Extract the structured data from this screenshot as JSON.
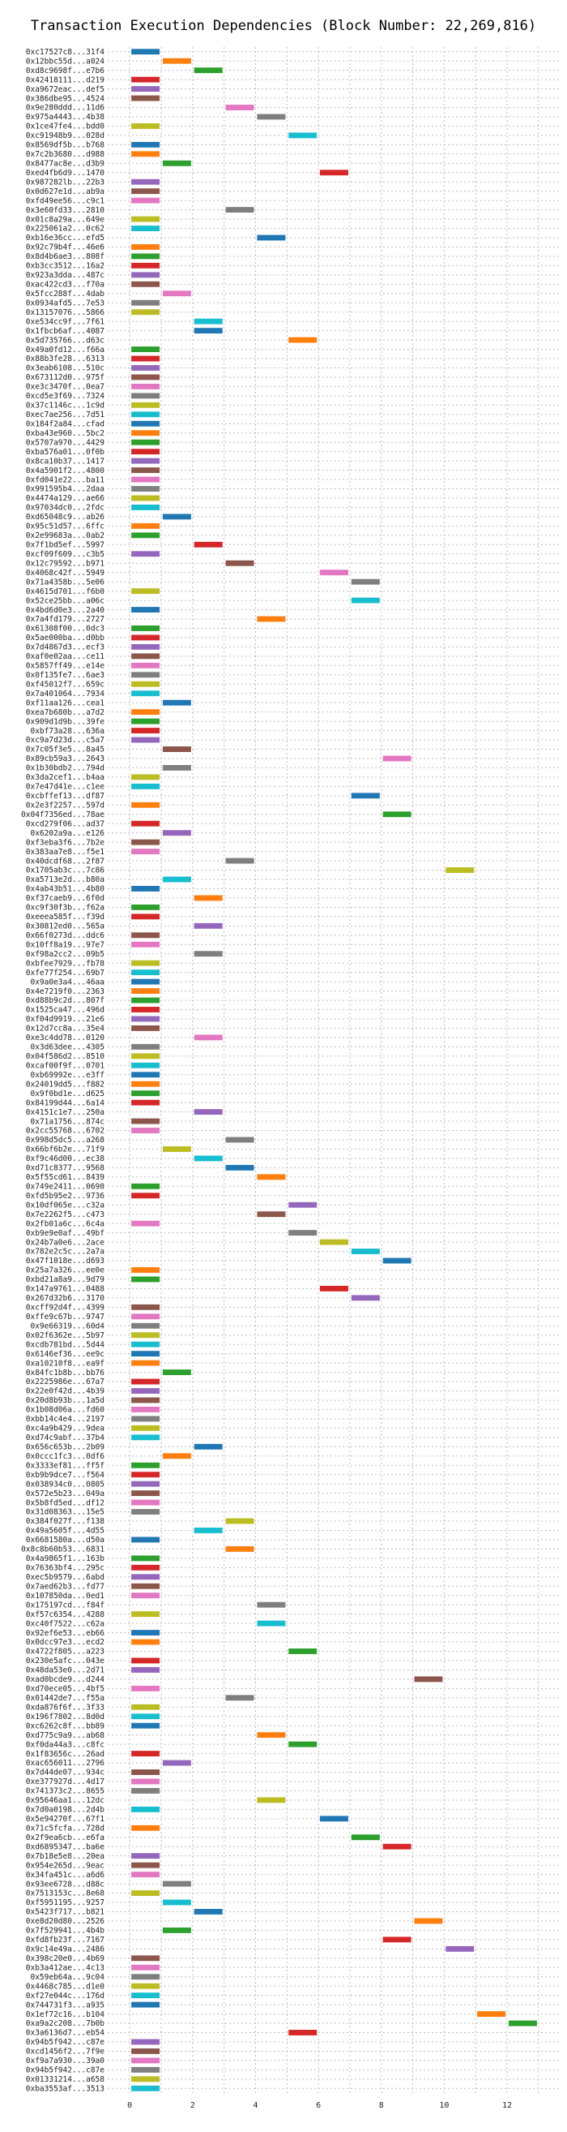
{
  "chart_data": {
    "type": "bar",
    "orientation": "horizontal",
    "title": "Transaction Execution Dependencies (Block Number: 22,269,816)",
    "xlabel": "",
    "ylabel": "",
    "xlim": [
      -0.7,
      13.7
    ],
    "xticks": [
      0,
      2,
      4,
      6,
      8,
      10,
      12
    ],
    "grid": true,
    "color_cycle": [
      "#1f77b4",
      "#ff7f0e",
      "#2ca02c",
      "#d62728",
      "#9467bd",
      "#8c564b",
      "#e377c2",
      "#7f7f7f",
      "#bcbd22",
      "#17becf"
    ],
    "transactions": [
      {
        "label": "0xc17527c8...31f4",
        "x": 0
      },
      {
        "label": "0x12bbc55d...a024",
        "x": 1
      },
      {
        "label": "0xd8c9698f...e7b6",
        "x": 2
      },
      {
        "label": "0x42418111...d219",
        "x": 0
      },
      {
        "label": "0xa9672eac...def5",
        "x": 0
      },
      {
        "label": "0x386dbe95...4524",
        "x": 0
      },
      {
        "label": "0x9e280ddd...11d6",
        "x": 3
      },
      {
        "label": "0x975a4443...4b38",
        "x": 4
      },
      {
        "label": "0x1ce47fe4...bdd0",
        "x": 0
      },
      {
        "label": "0xc91948b9...028d",
        "x": 5
      },
      {
        "label": "0x8569df5b...b768",
        "x": 0
      },
      {
        "label": "0x7c2b3680...d988",
        "x": 0
      },
      {
        "label": "0x8477ac8e...d3b9",
        "x": 1
      },
      {
        "label": "0xed4fb6d9...1470",
        "x": 6
      },
      {
        "label": "0x987282lb...22b3",
        "x": 0
      },
      {
        "label": "0x0d627e1d...ab9a",
        "x": 0
      },
      {
        "label": "0xfd49ee56...c9c1",
        "x": 0
      },
      {
        "label": "0x3e60fd33...2810",
        "x": 3
      },
      {
        "label": "0x01c8a29a...649e",
        "x": 0
      },
      {
        "label": "0x225061a2...0c62",
        "x": 0
      },
      {
        "label": "0xb16e36cc...efd5",
        "x": 4
      },
      {
        "label": "0x92c79b4f...46e6",
        "x": 0
      },
      {
        "label": "0x8d4b6ae3...808f",
        "x": 0
      },
      {
        "label": "0xb3cc3512...16a2",
        "x": 0
      },
      {
        "label": "0x923a3dda...487c",
        "x": 0
      },
      {
        "label": "0xac422cd3...f70a",
        "x": 0
      },
      {
        "label": "0x5fcc288f...4dab",
        "x": 1
      },
      {
        "label": "0x0934afd5...7e53",
        "x": 0
      },
      {
        "label": "0x13157076...5866",
        "x": 0
      },
      {
        "label": "0xe534cc9f...7f61",
        "x": 2
      },
      {
        "label": "0x1fbcb6af...4087",
        "x": 2
      },
      {
        "label": "0x5d735766...d63c",
        "x": 5
      },
      {
        "label": "0x49a0fd12...f66a",
        "x": 0
      },
      {
        "label": "0x88b3fe28...6313",
        "x": 0
      },
      {
        "label": "0x3eab6108...510c",
        "x": 0
      },
      {
        "label": "0x673112d0...975f",
        "x": 0
      },
      {
        "label": "0xe3c3470f...0ea7",
        "x": 0
      },
      {
        "label": "0xcd5e3f69...7324",
        "x": 0
      },
      {
        "label": "0x37c1146c...1c9d",
        "x": 0
      },
      {
        "label": "0xec7ae256...7d51",
        "x": 0
      },
      {
        "label": "0x184f2a84...cfad",
        "x": 0
      },
      {
        "label": "0xba43e960...5bc2",
        "x": 0
      },
      {
        "label": "0x5707a970...4429",
        "x": 0
      },
      {
        "label": "0xba576a01...0f0b",
        "x": 0
      },
      {
        "label": "0x8ca10b37...1417",
        "x": 0
      },
      {
        "label": "0x4a5901f2...4800",
        "x": 0
      },
      {
        "label": "0xfd041e22...ba11",
        "x": 0
      },
      {
        "label": "0x991595b4...2daa",
        "x": 0
      },
      {
        "label": "0x4474a129...ae66",
        "x": 0
      },
      {
        "label": "0x97034dc0...2fdc",
        "x": 0
      },
      {
        "label": "0xd65048c9...ab26",
        "x": 1
      },
      {
        "label": "0x95c51d57...6ffc",
        "x": 0
      },
      {
        "label": "0x2e99683a...0ab2",
        "x": 0
      },
      {
        "label": "0x7f1bd5ef...5997",
        "x": 2
      },
      {
        "label": "0xcf09f609...c3b5",
        "x": 0
      },
      {
        "label": "0x12c79592...b971",
        "x": 3
      },
      {
        "label": "0x4068c42f...5949",
        "x": 6
      },
      {
        "label": "0x71a4358b...5e06",
        "x": 7
      },
      {
        "label": "0x4615d701...f6b0",
        "x": 0
      },
      {
        "label": "0x52ce25bb...a06c",
        "x": 7
      },
      {
        "label": "0x4bd6d0e3...2a40",
        "x": 0
      },
      {
        "label": "0x7a4fd179...2727",
        "x": 4
      },
      {
        "label": "0x61308f00...0dc3",
        "x": 0
      },
      {
        "label": "0x5ae000ba...d0bb",
        "x": 0
      },
      {
        "label": "0x7d4867d3...ecf3",
        "x": 0
      },
      {
        "label": "0xaf0e02aa...ce11",
        "x": 0
      },
      {
        "label": "0x5857ff49...e14e",
        "x": 0
      },
      {
        "label": "0x0f135fe7...6ae3",
        "x": 0
      },
      {
        "label": "0xf45012f7...659c",
        "x": 0
      },
      {
        "label": "0x7a401064...7934",
        "x": 0
      },
      {
        "label": "0xf11aa126...cea1",
        "x": 1
      },
      {
        "label": "0xea7b680b...a7d2",
        "x": 0
      },
      {
        "label": "0x909d1d9b...39fe",
        "x": 0
      },
      {
        "label": "0xbf73a28...636a",
        "x": 0
      },
      {
        "label": "0xc9a7d23d...c5a7",
        "x": 0
      },
      {
        "label": "0x7c05f3e5...8a45",
        "x": 1
      },
      {
        "label": "0x89cb59a3...2643",
        "x": 8
      },
      {
        "label": "0x1b30bdb2...794d",
        "x": 1
      },
      {
        "label": "0x3da2cef1...b4aa",
        "x": 0
      },
      {
        "label": "0x7e47d41e...c1ee",
        "x": 0
      },
      {
        "label": "0xcbffef13...df87",
        "x": 7
      },
      {
        "label": "0x2e3f2257...597d",
        "x": 0
      },
      {
        "label": "0x04f7356ed...78ae",
        "x": 8
      },
      {
        "label": "0xcd279f06...ad37",
        "x": 0
      },
      {
        "label": "0x6202a9a...e126",
        "x": 1
      },
      {
        "label": "0xf3eba3f6...7b2e",
        "x": 0
      },
      {
        "label": "0x383aa7e8...f5e1",
        "x": 0
      },
      {
        "label": "0x40dcdf68...2f87",
        "x": 3
      },
      {
        "label": "0x1705ab3c...7c86",
        "x": 10
      },
      {
        "label": "0xa5713e2d...b80a",
        "x": 1
      },
      {
        "label": "0x4ab43b51...4b80",
        "x": 0
      },
      {
        "label": "0xf37caeb9...6f0d",
        "x": 2
      },
      {
        "label": "0xc9f30f3b...f62a",
        "x": 0
      },
      {
        "label": "0xeeea585f...f39d",
        "x": 0
      },
      {
        "label": "0x30812ed0...565a",
        "x": 2
      },
      {
        "label": "0x66f0273d...ddc6",
        "x": 0
      },
      {
        "label": "0x10ff8a19...97e7",
        "x": 0
      },
      {
        "label": "0xf98a2cc2...09b5",
        "x": 2
      },
      {
        "label": "0xbfee7929...fb78",
        "x": 0
      },
      {
        "label": "0xfe77f254...69b7",
        "x": 0
      },
      {
        "label": "0x9a0e3a4...46aa",
        "x": 0
      },
      {
        "label": "0x4e7219f0...2363",
        "x": 0
      },
      {
        "label": "0xd88b9c2d...807f",
        "x": 0
      },
      {
        "label": "0x1525ca47...496d",
        "x": 0
      },
      {
        "label": "0xf04d9919...21e6",
        "x": 0
      },
      {
        "label": "0x12d7cc8a...35e4",
        "x": 0
      },
      {
        "label": "0xe3c4dd78...0120",
        "x": 2
      },
      {
        "label": "0x3d63dee...4305",
        "x": 0
      },
      {
        "label": "0x04f586d2...8510",
        "x": 0
      },
      {
        "label": "0xcaf00f9f...0701",
        "x": 0
      },
      {
        "label": "0xb69992e...e3ff",
        "x": 0
      },
      {
        "label": "0x24019dd5...f882",
        "x": 0
      },
      {
        "label": "0x9f0bd1e...d625",
        "x": 0
      },
      {
        "label": "0x84199d44...6a14",
        "x": 0
      },
      {
        "label": "0x4151c1e7...250a",
        "x": 2
      },
      {
        "label": "0x71a1756...874c",
        "x": 0
      },
      {
        "label": "0x2cc55768...6702",
        "x": 0
      },
      {
        "label": "0x998d5dc5...a268",
        "x": 3
      },
      {
        "label": "0x66bf6b2e...71f9",
        "x": 1
      },
      {
        "label": "0xf9c46d00...ec38",
        "x": 2
      },
      {
        "label": "0xd71c8377...9568",
        "x": 3
      },
      {
        "label": "0x5f55cd61...8439",
        "x": 4
      },
      {
        "label": "0x749e2411...0690",
        "x": 0
      },
      {
        "label": "0xfd5b95e2...9736",
        "x": 0
      },
      {
        "label": "0x10df065e...c32a",
        "x": 5
      },
      {
        "label": "0x7e2262f5...c473",
        "x": 4
      },
      {
        "label": "0x2fb01a6c...6c4a",
        "x": 0
      },
      {
        "label": "0xb9e9e0af...49bf",
        "x": 5
      },
      {
        "label": "0x24b7a0e6...2ace",
        "x": 6
      },
      {
        "label": "0x782e2c5c...2a7a",
        "x": 7
      },
      {
        "label": "0x47f1018e...d693",
        "x": 8
      },
      {
        "label": "0x25a7a326...ee0e",
        "x": 0
      },
      {
        "label": "0xbd21a8a9...9d79",
        "x": 0
      },
      {
        "label": "0x147a9761...0488",
        "x": 6
      },
      {
        "label": "0x267d32b6...3170",
        "x": 7
      },
      {
        "label": "0xcff92d4f...4399",
        "x": 0
      },
      {
        "label": "0xffe9c67b...9747",
        "x": 0
      },
      {
        "label": "0x9e66319...60d4",
        "x": 0
      },
      {
        "label": "0x02f6362e...5b97",
        "x": 0
      },
      {
        "label": "0xcdb781bd...5d44",
        "x": 0
      },
      {
        "label": "0x6146ef36...ee9c",
        "x": 0
      },
      {
        "label": "0xa10210f8...ea9f",
        "x": 0
      },
      {
        "label": "0x84fc1b8b...bb76",
        "x": 1
      },
      {
        "label": "0x2225986e...67a7",
        "x": 0
      },
      {
        "label": "0x22e0f42d...4b39",
        "x": 0
      },
      {
        "label": "0x20d8b93b...1a5d",
        "x": 0
      },
      {
        "label": "0x1b08d06a...fd60",
        "x": 0
      },
      {
        "label": "0xbb14c4e4...2197",
        "x": 0
      },
      {
        "label": "0xc4a9b429...9dea",
        "x": 0
      },
      {
        "label": "0xd74c9abf...37b4",
        "x": 0
      },
      {
        "label": "0x656c653b...2b09",
        "x": 2
      },
      {
        "label": "0x0ccc1fc3...0df6",
        "x": 1
      },
      {
        "label": "0x3333ef81...ff5f",
        "x": 0
      },
      {
        "label": "0xb9b9dce7...f564",
        "x": 0
      },
      {
        "label": "0x038934c0...0805",
        "x": 0
      },
      {
        "label": "0x572e5b23...049a",
        "x": 0
      },
      {
        "label": "0x5b8fd5ed...df12",
        "x": 0
      },
      {
        "label": "0x31d08363...15e5",
        "x": 0
      },
      {
        "label": "0x384f027f...f138",
        "x": 3
      },
      {
        "label": "0x49a5605f...4d55",
        "x": 2
      },
      {
        "label": "0x6681580a...d50a",
        "x": 0
      },
      {
        "label": "0x8c8b60b53...6831",
        "x": 3
      },
      {
        "label": "0x4a9865f1...163b",
        "x": 0
      },
      {
        "label": "0x76363bf4...295c",
        "x": 0
      },
      {
        "label": "0xec5b9579...6abd",
        "x": 0
      },
      {
        "label": "0x7aed62b3...fd77",
        "x": 0
      },
      {
        "label": "0x107850da...0ed1",
        "x": 0
      },
      {
        "label": "0x175197cd...f84f",
        "x": 4
      },
      {
        "label": "0xf57c6354...4288",
        "x": 0
      },
      {
        "label": "0xc40f7522...c62a",
        "x": 4
      },
      {
        "label": "0x92ef6e53...eb66",
        "x": 0
      },
      {
        "label": "0x0dcc97e3...ecd2",
        "x": 0
      },
      {
        "label": "0x4722f805...a223",
        "x": 5
      },
      {
        "label": "0x230e5afc...043e",
        "x": 0
      },
      {
        "label": "0x48da53e0...2d71",
        "x": 0
      },
      {
        "label": "0xad0bcde9...d244",
        "x": 9
      },
      {
        "label": "0xd70ece05...4bf5",
        "x": 0
      },
      {
        "label": "0x01442de7...f55a",
        "x": 3
      },
      {
        "label": "0xda876f6f...3f33",
        "x": 0
      },
      {
        "label": "0x196f7802...8d0d",
        "x": 0
      },
      {
        "label": "0xc6262c8f...bb89",
        "x": 0
      },
      {
        "label": "0xd775c9a9...ab68",
        "x": 4
      },
      {
        "label": "0xf0da44a3...c8fc",
        "x": 5
      },
      {
        "label": "0x1f83656c...26ad",
        "x": 0
      },
      {
        "label": "0xac656011...2796",
        "x": 1
      },
      {
        "label": "0x7d44de07...934c",
        "x": 0
      },
      {
        "label": "0xe377927d...4d17",
        "x": 0
      },
      {
        "label": "0x741373c2...8655",
        "x": 0
      },
      {
        "label": "0x95646aa1...12dc",
        "x": 4
      },
      {
        "label": "0x7d0a0198...2d4b",
        "x": 0
      },
      {
        "label": "0x5e94270f...67f1",
        "x": 6
      },
      {
        "label": "0x71c5fcfa...728d",
        "x": 0
      },
      {
        "label": "0x2f9ea6cb...e6fa",
        "x": 7
      },
      {
        "label": "0xd6895347...ba6e",
        "x": 8
      },
      {
        "label": "0x7b18e5e8...20ea",
        "x": 0
      },
      {
        "label": "0x954e265d...9eac",
        "x": 0
      },
      {
        "label": "0x34fa451c...a6d6",
        "x": 0
      },
      {
        "label": "0x93ee6728...d88c",
        "x": 1
      },
      {
        "label": "0x7513153c...8e68",
        "x": 0
      },
      {
        "label": "0xf5951195...9257",
        "x": 1
      },
      {
        "label": "0x5423f717...b821",
        "x": 2
      },
      {
        "label": "0xe8d20d80...2526",
        "x": 9
      },
      {
        "label": "0x7f529941...4b4b",
        "x": 1
      },
      {
        "label": "0xfd8fb23f...7167",
        "x": 8
      },
      {
        "label": "0x9c14e49a...2486",
        "x": 10
      },
      {
        "label": "0x398c20e0...4b69",
        "x": 0
      },
      {
        "label": "0xb3a412ae...4c13",
        "x": 0
      },
      {
        "label": "0x59eb64a...9c04",
        "x": 0
      },
      {
        "label": "0x4468c785...d1e0",
        "x": 0
      },
      {
        "label": "0xf27e044c...176d",
        "x": 0
      },
      {
        "label": "0x744731f3...a935",
        "x": 0
      },
      {
        "label": "0x1ef72c16...b104",
        "x": 11
      },
      {
        "label": "0xa9a2c208...7b0b",
        "x": 12
      },
      {
        "label": "0x3a6136d7...eb54",
        "x": 5
      },
      {
        "label": "0x94b5f942...c87e",
        "x": 0
      },
      {
        "label": "0xcd1456f2...7f9e",
        "x": 0
      },
      {
        "label": "0xf9a7a930...39a0",
        "x": 0
      },
      {
        "label": "0x94b5f942...c87e",
        "x": 0
      },
      {
        "label": "0x01331214...a658",
        "x": 0
      },
      {
        "label": "0xba3553af...3513",
        "x": 0
      }
    ]
  }
}
